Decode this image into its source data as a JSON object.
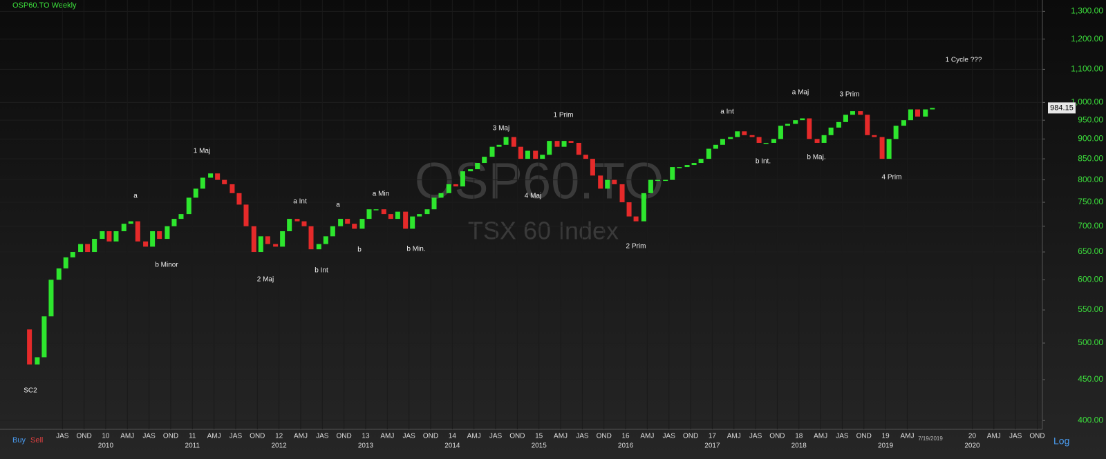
{
  "chart_data": {
    "type": "candlestick",
    "title": "OSP60.TO Weekly",
    "watermark": "OSP60.TO",
    "watermark_subtitle": "TSX 60 Index",
    "log_scale": true,
    "grid": true,
    "up_color": "#2ee62e",
    "down_color": "#e52a2a",
    "ylim": [
      390,
      1343
    ],
    "xlim": [
      2008.78,
      2020.81
    ],
    "yticks": [
      {
        "value": 400,
        "label": "400.00"
      },
      {
        "value": 450,
        "label": "450.00"
      },
      {
        "value": 500,
        "label": "500.00"
      },
      {
        "value": 550,
        "label": "550.00"
      },
      {
        "value": 600,
        "label": "600.00"
      },
      {
        "value": 650,
        "label": "650.00"
      },
      {
        "value": 700,
        "label": "700.00"
      },
      {
        "value": 750,
        "label": "750.00"
      },
      {
        "value": 800,
        "label": "800.00"
      },
      {
        "value": 850,
        "label": "850.00"
      },
      {
        "value": 900,
        "label": "900.00"
      },
      {
        "value": 950,
        "label": "950.00"
      },
      {
        "value": 1000,
        "label": "1,000.00"
      },
      {
        "value": 1100,
        "label": "1,100.00"
      },
      {
        "value": 1200,
        "label": "1,200.00"
      },
      {
        "value": 1300,
        "label": "1,300.00"
      }
    ],
    "xticks": [
      {
        "value": 2009.5,
        "label": "JAS"
      },
      {
        "value": 2009.75,
        "label": "OND"
      },
      {
        "value": 2010,
        "label": "10"
      },
      {
        "value": 2010.25,
        "label": "AMJ"
      },
      {
        "value": 2010.5,
        "label": "JAS"
      },
      {
        "value": 2010.75,
        "label": "OND"
      },
      {
        "value": 2011,
        "label": "11"
      },
      {
        "value": 2011.25,
        "label": "AMJ"
      },
      {
        "value": 2011.5,
        "label": "JAS"
      },
      {
        "value": 2011.75,
        "label": "OND"
      },
      {
        "value": 2012,
        "label": "12"
      },
      {
        "value": 2012.25,
        "label": "AMJ"
      },
      {
        "value": 2012.5,
        "label": "JAS"
      },
      {
        "value": 2012.75,
        "label": "OND"
      },
      {
        "value": 2013,
        "label": "13"
      },
      {
        "value": 2013.25,
        "label": "AMJ"
      },
      {
        "value": 2013.5,
        "label": "JAS"
      },
      {
        "value": 2013.75,
        "label": "OND"
      },
      {
        "value": 2014,
        "label": "14"
      },
      {
        "value": 2014.25,
        "label": "AMJ"
      },
      {
        "value": 2014.5,
        "label": "JAS"
      },
      {
        "value": 2014.75,
        "label": "OND"
      },
      {
        "value": 2015,
        "label": "15"
      },
      {
        "value": 2015.25,
        "label": "AMJ"
      },
      {
        "value": 2015.5,
        "label": "JAS"
      },
      {
        "value": 2015.75,
        "label": "OND"
      },
      {
        "value": 2016,
        "label": "16"
      },
      {
        "value": 2016.25,
        "label": "AMJ"
      },
      {
        "value": 2016.5,
        "label": "JAS"
      },
      {
        "value": 2016.75,
        "label": "OND"
      },
      {
        "value": 2017,
        "label": "17"
      },
      {
        "value": 2017.25,
        "label": "AMJ"
      },
      {
        "value": 2017.5,
        "label": "JAS"
      },
      {
        "value": 2017.75,
        "label": "OND"
      },
      {
        "value": 2018,
        "label": "18"
      },
      {
        "value": 2018.25,
        "label": "AMJ"
      },
      {
        "value": 2018.5,
        "label": "JAS"
      },
      {
        "value": 2018.75,
        "label": "OND"
      },
      {
        "value": 2019,
        "label": "19"
      },
      {
        "value": 2019.25,
        "label": "AMJ"
      },
      {
        "value": 2020,
        "label": "20"
      },
      {
        "value": 2020.25,
        "label": "AMJ"
      },
      {
        "value": 2020.5,
        "label": "JAS"
      },
      {
        "value": 2020.75,
        "label": "OND"
      }
    ],
    "x_year_labels": [
      {
        "value": 2010,
        "label": "2010"
      },
      {
        "value": 2011,
        "label": "2011"
      },
      {
        "value": 2012,
        "label": "2012"
      },
      {
        "value": 2013,
        "label": "2013"
      },
      {
        "value": 2014,
        "label": "2014"
      },
      {
        "value": 2015,
        "label": "2015"
      },
      {
        "value": 2016,
        "label": "2016"
      },
      {
        "value": 2017,
        "label": "2017"
      },
      {
        "value": 2018,
        "label": "2018"
      },
      {
        "value": 2019,
        "label": "2019"
      },
      {
        "value": 2020,
        "label": "2020"
      }
    ],
    "x": [
      2009.04,
      2009.12,
      2009.21,
      2009.29,
      2009.37,
      2009.46,
      2009.54,
      2009.62,
      2009.71,
      2009.79,
      2009.87,
      2009.96,
      2010.04,
      2010.12,
      2010.21,
      2010.29,
      2010.37,
      2010.46,
      2010.54,
      2010.62,
      2010.71,
      2010.79,
      2010.87,
      2010.96,
      2011.04,
      2011.12,
      2011.21,
      2011.29,
      2011.37,
      2011.46,
      2011.54,
      2011.62,
      2011.71,
      2011.79,
      2011.87,
      2011.96,
      2012.04,
      2012.12,
      2012.21,
      2012.29,
      2012.37,
      2012.46,
      2012.54,
      2012.62,
      2012.71,
      2012.79,
      2012.87,
      2012.96,
      2013.04,
      2013.12,
      2013.21,
      2013.29,
      2013.37,
      2013.46,
      2013.54,
      2013.62,
      2013.71,
      2013.79,
      2013.87,
      2013.96,
      2014.04,
      2014.12,
      2014.21,
      2014.29,
      2014.37,
      2014.46,
      2014.54,
      2014.62,
      2014.71,
      2014.79,
      2014.87,
      2014.96,
      2015.04,
      2015.12,
      2015.21,
      2015.29,
      2015.37,
      2015.46,
      2015.54,
      2015.62,
      2015.71,
      2015.79,
      2015.87,
      2015.96,
      2016.04,
      2016.12,
      2016.21,
      2016.29,
      2016.37,
      2016.46,
      2016.54,
      2016.62,
      2016.71,
      2016.79,
      2016.87,
      2016.96,
      2017.04,
      2017.12,
      2017.21,
      2017.29,
      2017.37,
      2017.46,
      2017.54,
      2017.62,
      2017.71,
      2017.79,
      2017.87,
      2017.96,
      2018.04,
      2018.12,
      2018.21,
      2018.29,
      2018.37,
      2018.46,
      2018.54,
      2018.62,
      2018.71,
      2018.79,
      2018.87,
      2018.96,
      2019.04,
      2019.12,
      2019.21,
      2019.29,
      2019.37,
      2019.46,
      2019.54
    ],
    "close": [
      520,
      470,
      480,
      540,
      600,
      620,
      640,
      650,
      665,
      650,
      675,
      690,
      670,
      690,
      705,
      710,
      670,
      660,
      690,
      675,
      700,
      715,
      725,
      760,
      780,
      805,
      815,
      800,
      790,
      770,
      745,
      700,
      650,
      680,
      665,
      660,
      690,
      715,
      710,
      700,
      655,
      665,
      680,
      700,
      715,
      705,
      695,
      715,
      735,
      735,
      725,
      715,
      730,
      695,
      720,
      725,
      735,
      760,
      770,
      790,
      785,
      820,
      825,
      840,
      855,
      880,
      885,
      905,
      880,
      850,
      870,
      850,
      860,
      895,
      880,
      895,
      890,
      860,
      850,
      810,
      780,
      800,
      790,
      750,
      720,
      710,
      770,
      800,
      800,
      800,
      830,
      830,
      835,
      840,
      850,
      875,
      885,
      900,
      905,
      920,
      910,
      905,
      890,
      890,
      900,
      935,
      940,
      950,
      955,
      900,
      890,
      910,
      930,
      945,
      965,
      975,
      965,
      910,
      905,
      850,
      900,
      935,
      950,
      980,
      960,
      980,
      984.15
    ],
    "annotations": [
      "SC2",
      "a",
      "b Minor",
      "1 Maj",
      "2 Maj",
      "a Int",
      "b Int",
      "a",
      "b",
      "a Min",
      "b Min.",
      "3 Maj",
      "4 Maj",
      "1 Prim",
      "2 Prim",
      "a Int",
      "b Int.",
      "a Maj",
      "b Maj.",
      "3 Prim",
      "4 Prim",
      "1 Cycle ???"
    ],
    "last_date": "7/19/2019",
    "buy_label": "Buy",
    "sell_label": "Sell",
    "scale_mode": "Log"
  }
}
